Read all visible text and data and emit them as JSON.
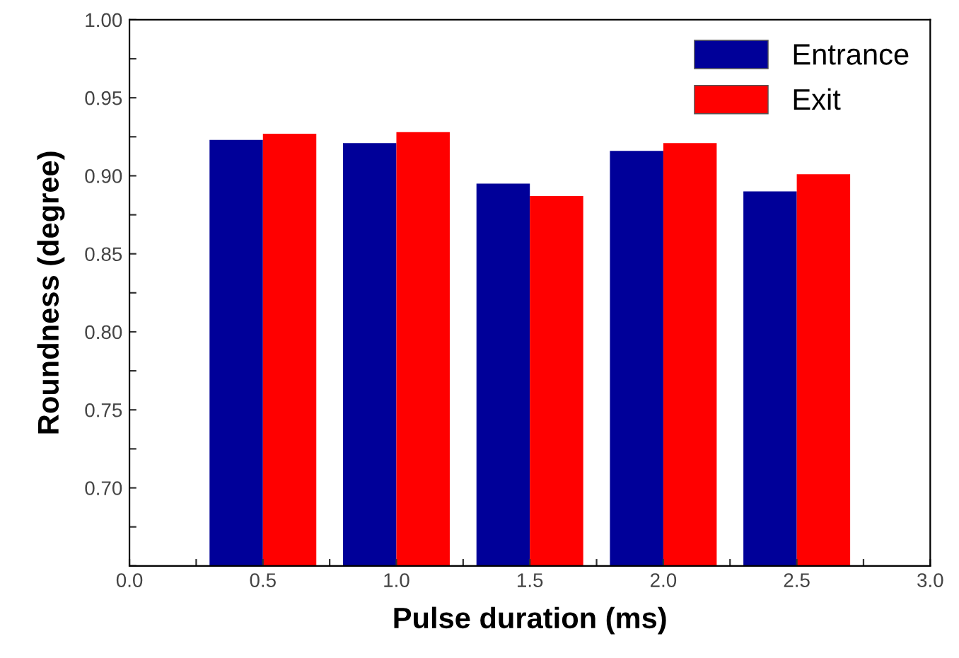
{
  "chart_data": {
    "type": "bar",
    "xlabel": "Pulse duration (ms)",
    "ylabel": "Roundness (degree)",
    "x": [
      0.5,
      1.0,
      1.5,
      2.0,
      2.5
    ],
    "series": [
      {
        "name": "Entrance",
        "color": "#000099",
        "values": [
          0.923,
          0.921,
          0.895,
          0.916,
          0.89
        ]
      },
      {
        "name": "Exit",
        "color": "#ff0000",
        "values": [
          0.927,
          0.928,
          0.887,
          0.921,
          0.901
        ]
      }
    ],
    "xlim": [
      0.0,
      3.0
    ],
    "xticks": [
      {
        "value": 0,
        "label": "0.0"
      },
      {
        "value": 0.25,
        "label": null
      },
      0.5,
      {
        "value": 0.75,
        "label": null
      },
      {
        "value": 1,
        "label": "1.0"
      },
      {
        "value": 1.25,
        "label": null
      },
      1.5,
      {
        "value": 1.75,
        "label": null
      },
      {
        "value": 2,
        "label": "2.0"
      },
      {
        "value": 2.25,
        "label": null
      },
      2.5,
      {
        "value": 2.75,
        "label": null
      },
      {
        "value": 3,
        "label": "3.0"
      }
    ],
    "ylim": [
      0.65,
      1.0
    ],
    "yticks": [
      {
        "value": 0.65,
        "label": null
      },
      {
        "value": 0.675,
        "label": null
      },
      {
        "value": 0.7,
        "label": "0.70"
      },
      {
        "value": 0.725,
        "label": null
      },
      0.75,
      {
        "value": 0.775,
        "label": null
      },
      {
        "value": 0.8,
        "label": "0.80"
      },
      {
        "value": 0.825,
        "label": null
      },
      0.85,
      {
        "value": 0.875,
        "label": null
      },
      {
        "value": 0.9,
        "label": "0.90"
      },
      {
        "value": 0.925,
        "label": null
      },
      0.95,
      {
        "value": 0.975,
        "label": null
      },
      {
        "value": 1,
        "label": "1.00"
      }
    ],
    "legend": "top right",
    "grid": false
  }
}
